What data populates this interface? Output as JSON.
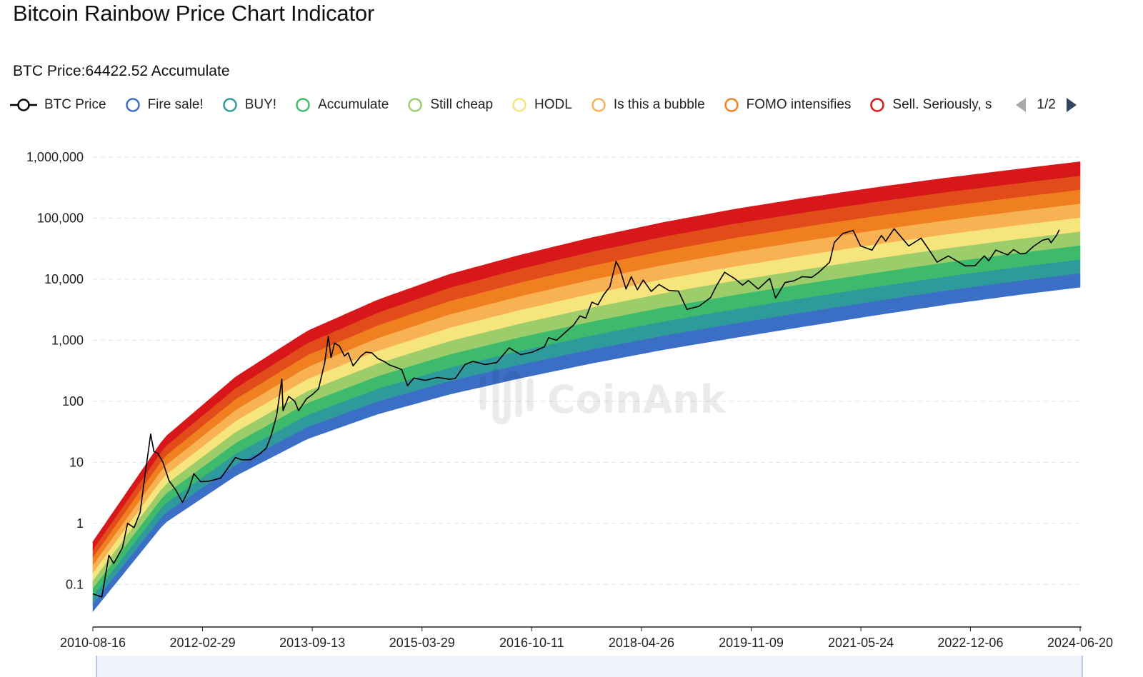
{
  "header": {
    "title": "Bitcoin Rainbow Price Chart Indicator",
    "price_text": "BTC Price:64422.52 Accumulate"
  },
  "legend": {
    "items": [
      {
        "label": "BTC Price",
        "color": "#000000",
        "icon": "line-circle-icon"
      },
      {
        "label": "Fire sale!",
        "color": "#3b6fc6",
        "icon": "circle-icon"
      },
      {
        "label": "BUY!",
        "color": "#2f9a9c",
        "icon": "circle-icon"
      },
      {
        "label": "Accumulate",
        "color": "#3dba6c",
        "icon": "circle-icon"
      },
      {
        "label": "Still cheap",
        "color": "#9ccd6a",
        "icon": "circle-icon"
      },
      {
        "label": "HODL",
        "color": "#f6e57c",
        "icon": "circle-icon"
      },
      {
        "label": "Is this a bubble",
        "color": "#f8b254",
        "icon": "circle-icon"
      },
      {
        "label": "FOMO intensifies",
        "color": "#f0801f",
        "icon": "circle-icon"
      },
      {
        "label": "Sell. Seriously, s",
        "color": "#d8171b",
        "icon": "circle-icon"
      }
    ],
    "page": "1/2"
  },
  "watermark": "CoinAnk",
  "chart_data": {
    "type": "area",
    "yscale": "log",
    "ylim": [
      0.02,
      1000000
    ],
    "xlim": [
      "2010-08-16",
      "2024-06-20"
    ],
    "y_ticks": [
      {
        "v": 1000000,
        "label": "1,000,000"
      },
      {
        "v": 100000,
        "label": "100,000"
      },
      {
        "v": 10000,
        "label": "10,000"
      },
      {
        "v": 1000,
        "label": "1,000"
      },
      {
        "v": 100,
        "label": "100"
      },
      {
        "v": 10,
        "label": "10"
      },
      {
        "v": 1,
        "label": "1"
      },
      {
        "v": 0.1,
        "label": "0.1"
      }
    ],
    "x_ticks": [
      "2010-08-16",
      "2012-02-29",
      "2013-09-13",
      "2015-03-29",
      "2016-10-11",
      "2018-04-26",
      "2019-11-09",
      "2021-05-24",
      "2022-12-06",
      "2024-06-20"
    ],
    "bands": {
      "dates": [
        "2010-08-16",
        "2011-08-16",
        "2012-08-16",
        "2013-08-16",
        "2014-08-16",
        "2015-08-16",
        "2016-08-16",
        "2017-08-16",
        "2018-08-16",
        "2019-08-16",
        "2020-08-16",
        "2021-08-16",
        "2022-08-16",
        "2023-08-16",
        "2024-06-20"
      ],
      "bottom": [
        0.036,
        1.0,
        6.0,
        24,
        62,
        130,
        240,
        420,
        700,
        1100,
        1700,
        2600,
        3900,
        5600,
        7400
      ],
      "top": [
        0.5,
        25,
        250,
        1400,
        4600,
        12000,
        25000,
        48000,
        85000,
        140000,
        215000,
        320000,
        460000,
        640000,
        840000
      ],
      "colors": [
        "#3b6fc6",
        "#2f9a9c",
        "#3dba6c",
        "#9ccd6a",
        "#f6e57c",
        "#f8b254",
        "#f0801f",
        "#e14c1a",
        "#d8171b"
      ]
    },
    "series": [
      {
        "name": "BTC Price",
        "color": "#000000",
        "points": [
          [
            "2010-08-16",
            0.07
          ],
          [
            "2010-10-01",
            0.062
          ],
          [
            "2010-11-06",
            0.3
          ],
          [
            "2010-12-01",
            0.22
          ],
          [
            "2011-01-15",
            0.4
          ],
          [
            "2011-02-10",
            1.0
          ],
          [
            "2011-03-15",
            0.85
          ],
          [
            "2011-04-15",
            1.5
          ],
          [
            "2011-05-15",
            8
          ],
          [
            "2011-06-08",
            29
          ],
          [
            "2011-06-25",
            15
          ],
          [
            "2011-07-15",
            14
          ],
          [
            "2011-08-10",
            10
          ],
          [
            "2011-09-10",
            5
          ],
          [
            "2011-10-15",
            3.5
          ],
          [
            "2011-11-18",
            2.2
          ],
          [
            "2011-12-20",
            3.5
          ],
          [
            "2012-01-15",
            6.5
          ],
          [
            "2012-02-20",
            4.8
          ],
          [
            "2012-04-01",
            4.9
          ],
          [
            "2012-06-01",
            5.5
          ],
          [
            "2012-08-15",
            12
          ],
          [
            "2012-09-15",
            11
          ],
          [
            "2012-11-01",
            11
          ],
          [
            "2012-12-15",
            13.5
          ],
          [
            "2013-01-20",
            17
          ],
          [
            "2013-02-15",
            28
          ],
          [
            "2013-03-15",
            60
          ],
          [
            "2013-04-10",
            230
          ],
          [
            "2013-04-16",
            70
          ],
          [
            "2013-05-15",
            120
          ],
          [
            "2013-06-15",
            100
          ],
          [
            "2013-07-05",
            70
          ],
          [
            "2013-08-15",
            110
          ],
          [
            "2013-09-15",
            130
          ],
          [
            "2013-10-15",
            160
          ],
          [
            "2013-11-15",
            420
          ],
          [
            "2013-12-04",
            1150
          ],
          [
            "2013-12-18",
            520
          ],
          [
            "2014-01-05",
            900
          ],
          [
            "2014-01-30",
            800
          ],
          [
            "2014-02-25",
            550
          ],
          [
            "2014-03-15",
            620
          ],
          [
            "2014-04-10",
            380
          ],
          [
            "2014-05-20",
            550
          ],
          [
            "2014-06-15",
            640
          ],
          [
            "2014-07-15",
            620
          ],
          [
            "2014-08-15",
            500
          ],
          [
            "2014-09-15",
            450
          ],
          [
            "2014-10-15",
            390
          ],
          [
            "2014-11-15",
            360
          ],
          [
            "2014-12-15",
            330
          ],
          [
            "2015-01-14",
            180
          ],
          [
            "2015-02-15",
            240
          ],
          [
            "2015-04-15",
            220
          ],
          [
            "2015-06-15",
            245
          ],
          [
            "2015-08-15",
            230
          ],
          [
            "2015-09-15",
            235
          ],
          [
            "2015-11-04",
            400
          ],
          [
            "2015-12-15",
            450
          ],
          [
            "2016-02-15",
            400
          ],
          [
            "2016-04-15",
            430
          ],
          [
            "2016-06-17",
            750
          ],
          [
            "2016-08-15",
            580
          ],
          [
            "2016-10-15",
            640
          ],
          [
            "2016-12-15",
            780
          ],
          [
            "2017-01-05",
            1100
          ],
          [
            "2017-02-15",
            1000
          ],
          [
            "2017-03-15",
            1200
          ],
          [
            "2017-05-15",
            1800
          ],
          [
            "2017-06-15",
            2500
          ],
          [
            "2017-07-15",
            2300
          ],
          [
            "2017-08-15",
            4200
          ],
          [
            "2017-09-15",
            3800
          ],
          [
            "2017-10-15",
            5600
          ],
          [
            "2017-11-15",
            7500
          ],
          [
            "2017-12-17",
            19500
          ],
          [
            "2018-01-05",
            15000
          ],
          [
            "2018-02-06",
            6900
          ],
          [
            "2018-03-05",
            11000
          ],
          [
            "2018-04-05",
            6700
          ],
          [
            "2018-05-05",
            9700
          ],
          [
            "2018-06-15",
            6300
          ],
          [
            "2018-07-25",
            8200
          ],
          [
            "2018-09-15",
            6500
          ],
          [
            "2018-11-01",
            6400
          ],
          [
            "2018-12-15",
            3200
          ],
          [
            "2019-02-15",
            3600
          ],
          [
            "2019-04-15",
            5000
          ],
          [
            "2019-05-15",
            7800
          ],
          [
            "2019-06-26",
            13000
          ],
          [
            "2019-08-15",
            10300
          ],
          [
            "2019-09-26",
            8000
          ],
          [
            "2019-10-26",
            9500
          ],
          [
            "2019-12-15",
            6900
          ],
          [
            "2020-02-12",
            10300
          ],
          [
            "2020-03-13",
            4900
          ],
          [
            "2020-04-30",
            8800
          ],
          [
            "2020-06-15",
            9400
          ],
          [
            "2020-07-28",
            11000
          ],
          [
            "2020-09-15",
            10700
          ],
          [
            "2020-10-21",
            13000
          ],
          [
            "2020-12-15",
            19000
          ],
          [
            "2021-01-08",
            40000
          ],
          [
            "2021-02-20",
            56000
          ],
          [
            "2021-04-14",
            63000
          ],
          [
            "2021-05-22",
            35000
          ],
          [
            "2021-07-20",
            30000
          ],
          [
            "2021-09-06",
            52000
          ],
          [
            "2021-09-28",
            42000
          ],
          [
            "2021-11-10",
            67000
          ],
          [
            "2022-01-24",
            35000
          ],
          [
            "2022-03-28",
            47000
          ],
          [
            "2022-05-12",
            29000
          ],
          [
            "2022-06-18",
            19000
          ],
          [
            "2022-08-15",
            24000
          ],
          [
            "2022-11-09",
            16500
          ],
          [
            "2022-12-30",
            16600
          ],
          [
            "2023-02-15",
            24000
          ],
          [
            "2023-03-10",
            20000
          ],
          [
            "2023-04-15",
            30000
          ],
          [
            "2023-06-15",
            25000
          ],
          [
            "2023-07-15",
            30500
          ],
          [
            "2023-08-20",
            26000
          ],
          [
            "2023-09-15",
            26500
          ],
          [
            "2023-10-25",
            34500
          ],
          [
            "2023-12-10",
            43500
          ],
          [
            "2024-01-10",
            46000
          ],
          [
            "2024-01-23",
            39500
          ],
          [
            "2024-02-20",
            52000
          ],
          [
            "2024-03-05",
            64422.52
          ]
        ]
      }
    ]
  }
}
